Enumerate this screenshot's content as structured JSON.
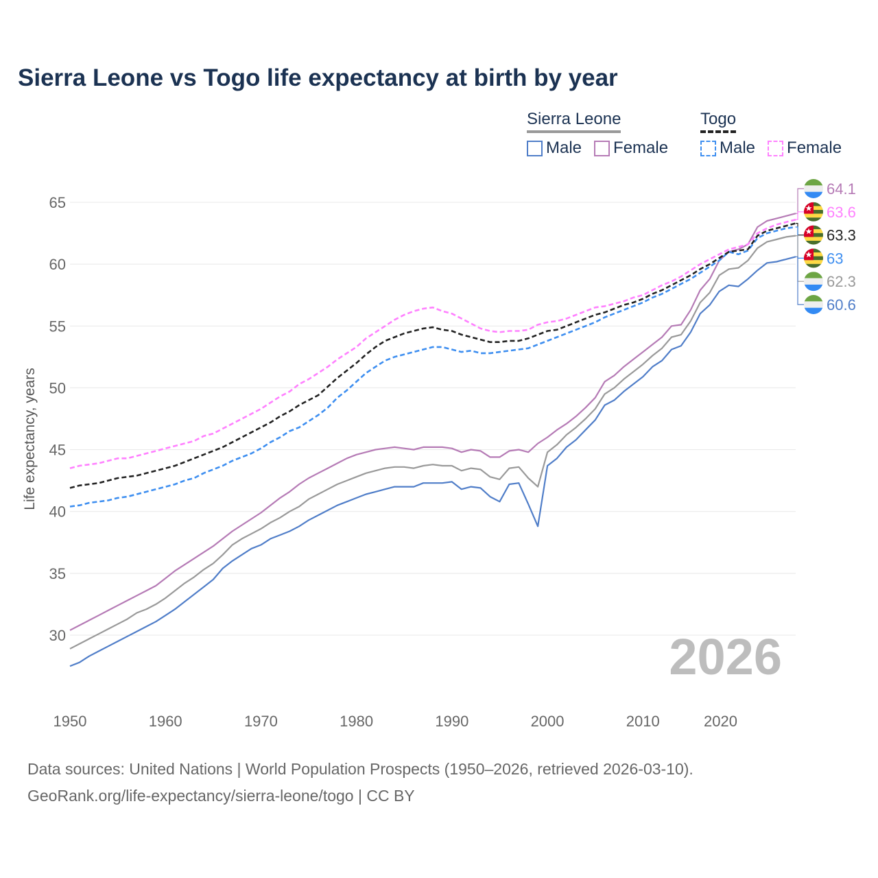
{
  "chart_data": {
    "type": "line",
    "title": "Sierra Leone vs Togo life expectancy at birth by year",
    "xlabel": "",
    "ylabel": "Life expectancy, years",
    "xlim": [
      1950,
      2026
    ],
    "ylim": [
      25,
      66.5
    ],
    "x_ticks": [
      1950,
      1960,
      1970,
      1980,
      1990,
      2000,
      2010,
      2020
    ],
    "y_ticks": [
      30,
      35,
      40,
      45,
      50,
      55,
      60,
      65
    ],
    "grid": true,
    "watermark_year": "2026",
    "x": [
      1950,
      1951,
      1952,
      1953,
      1954,
      1955,
      1956,
      1957,
      1958,
      1959,
      1960,
      1961,
      1962,
      1963,
      1964,
      1965,
      1966,
      1967,
      1968,
      1969,
      1970,
      1971,
      1972,
      1973,
      1974,
      1975,
      1976,
      1977,
      1978,
      1979,
      1980,
      1981,
      1982,
      1983,
      1984,
      1985,
      1986,
      1987,
      1988,
      1989,
      1990,
      1991,
      1992,
      1993,
      1994,
      1995,
      1996,
      1997,
      1998,
      1999,
      2000,
      2001,
      2002,
      2003,
      2004,
      2005,
      2006,
      2007,
      2008,
      2009,
      2010,
      2011,
      2012,
      2013,
      2014,
      2015,
      2016,
      2017,
      2018,
      2019,
      2020,
      2021,
      2022,
      2023,
      2024,
      2025,
      2026
    ],
    "series": [
      {
        "name": "Sierra Leone Female",
        "country": "sierra-leone",
        "color": "#b57ab5",
        "dashed": false,
        "end_label": "64.1",
        "values": [
          30.4,
          30.8,
          31.2,
          31.6,
          32.0,
          32.4,
          32.8,
          33.2,
          33.6,
          34.0,
          34.6,
          35.2,
          35.7,
          36.2,
          36.7,
          37.2,
          37.8,
          38.4,
          38.9,
          39.4,
          39.9,
          40.5,
          41.1,
          41.6,
          42.2,
          42.7,
          43.1,
          43.5,
          43.9,
          44.3,
          44.6,
          44.8,
          45.0,
          45.1,
          45.2,
          45.1,
          45.0,
          45.2,
          45.2,
          45.2,
          45.1,
          44.8,
          45.0,
          44.9,
          44.4,
          44.4,
          44.9,
          45.0,
          44.8,
          45.5,
          46.0,
          46.6,
          47.1,
          47.7,
          48.4,
          49.2,
          50.5,
          51.0,
          51.7,
          52.3,
          52.9,
          53.5,
          54.1,
          55.0,
          55.1,
          56.3,
          57.9,
          58.8,
          60.3,
          61.0,
          61.2,
          61.6,
          63.0,
          63.5,
          63.7,
          63.9,
          64.1
        ]
      },
      {
        "name": "Togo Female",
        "country": "togo",
        "color": "#ff80ff",
        "dashed": true,
        "end_label": "63.6",
        "values": [
          43.5,
          43.7,
          43.8,
          43.9,
          44.1,
          44.3,
          44.3,
          44.5,
          44.7,
          44.9,
          45.1,
          45.3,
          45.5,
          45.7,
          46.1,
          46.3,
          46.7,
          47.1,
          47.5,
          47.9,
          48.3,
          48.8,
          49.3,
          49.7,
          50.3,
          50.7,
          51.2,
          51.7,
          52.3,
          52.8,
          53.3,
          54.0,
          54.5,
          55.0,
          55.5,
          55.9,
          56.2,
          56.4,
          56.5,
          56.2,
          56.0,
          55.6,
          55.2,
          54.8,
          54.6,
          54.5,
          54.6,
          54.6,
          54.7,
          55.1,
          55.3,
          55.4,
          55.6,
          55.9,
          56.2,
          56.5,
          56.6,
          56.8,
          57.0,
          57.3,
          57.5,
          57.9,
          58.3,
          58.6,
          59.0,
          59.5,
          60.0,
          60.4,
          60.8,
          61.2,
          61.4,
          61.6,
          62.5,
          62.9,
          63.2,
          63.4,
          63.6
        ]
      },
      {
        "name": "Togo",
        "country": "togo",
        "color": "#222222",
        "dashed": true,
        "end_label": "63.3",
        "values": [
          41.9,
          42.1,
          42.2,
          42.3,
          42.5,
          42.7,
          42.8,
          42.9,
          43.1,
          43.3,
          43.5,
          43.7,
          44.0,
          44.3,
          44.6,
          44.9,
          45.2,
          45.6,
          46.0,
          46.4,
          46.8,
          47.2,
          47.7,
          48.1,
          48.6,
          49.0,
          49.4,
          50.1,
          50.8,
          51.4,
          52.0,
          52.7,
          53.3,
          53.8,
          54.1,
          54.4,
          54.6,
          54.8,
          54.9,
          54.7,
          54.6,
          54.3,
          54.1,
          53.9,
          53.7,
          53.7,
          53.8,
          53.8,
          54.0,
          54.3,
          54.6,
          54.7,
          55.0,
          55.3,
          55.6,
          55.9,
          56.1,
          56.4,
          56.7,
          56.9,
          57.2,
          57.6,
          57.9,
          58.3,
          58.7,
          59.1,
          59.6,
          60.0,
          60.5,
          61.0,
          61.1,
          61.2,
          62.3,
          62.7,
          62.9,
          63.1,
          63.3
        ]
      },
      {
        "name": "Togo Male",
        "country": "togo",
        "color": "#3d8ef0",
        "dashed": true,
        "end_label": "63",
        "values": [
          40.4,
          40.5,
          40.7,
          40.8,
          40.9,
          41.1,
          41.2,
          41.4,
          41.6,
          41.8,
          42.0,
          42.2,
          42.5,
          42.7,
          43.1,
          43.4,
          43.7,
          44.1,
          44.4,
          44.7,
          45.1,
          45.6,
          46.0,
          46.5,
          46.8,
          47.3,
          47.8,
          48.4,
          49.2,
          49.8,
          50.5,
          51.2,
          51.7,
          52.2,
          52.5,
          52.7,
          52.9,
          53.1,
          53.3,
          53.3,
          53.1,
          52.9,
          53.0,
          52.8,
          52.8,
          52.9,
          53.0,
          53.1,
          53.2,
          53.5,
          53.8,
          54.1,
          54.4,
          54.7,
          55.0,
          55.3,
          55.7,
          56.0,
          56.3,
          56.6,
          56.9,
          57.3,
          57.6,
          58.0,
          58.4,
          58.8,
          59.3,
          59.8,
          60.3,
          61.0,
          60.8,
          61.1,
          62.1,
          62.5,
          62.7,
          62.9,
          63.0
        ]
      },
      {
        "name": "Sierra Leone",
        "country": "sierra-leone",
        "color": "#999999",
        "dashed": false,
        "end_label": "62.3",
        "values": [
          28.9,
          29.3,
          29.7,
          30.1,
          30.5,
          30.9,
          31.3,
          31.8,
          32.1,
          32.5,
          33.0,
          33.6,
          34.2,
          34.7,
          35.3,
          35.8,
          36.5,
          37.3,
          37.8,
          38.2,
          38.6,
          39.1,
          39.5,
          40.0,
          40.4,
          41.0,
          41.4,
          41.8,
          42.2,
          42.5,
          42.8,
          43.1,
          43.3,
          43.5,
          43.6,
          43.6,
          43.5,
          43.7,
          43.8,
          43.7,
          43.7,
          43.3,
          43.5,
          43.4,
          42.8,
          42.6,
          43.5,
          43.6,
          42.7,
          42.0,
          44.8,
          45.4,
          46.2,
          46.8,
          47.5,
          48.3,
          49.5,
          50.0,
          50.7,
          51.3,
          51.9,
          52.6,
          53.2,
          54.1,
          54.3,
          55.4,
          56.9,
          57.7,
          59.1,
          59.6,
          59.7,
          60.3,
          61.3,
          61.8,
          62.0,
          62.2,
          62.3
        ]
      },
      {
        "name": "Sierra Leone Male",
        "country": "sierra-leone",
        "color": "#4f7dc8",
        "dashed": false,
        "end_label": "60.6",
        "values": [
          27.5,
          27.8,
          28.3,
          28.7,
          29.1,
          29.5,
          29.9,
          30.3,
          30.7,
          31.1,
          31.6,
          32.1,
          32.7,
          33.3,
          33.9,
          34.5,
          35.4,
          36.0,
          36.5,
          37.0,
          37.3,
          37.8,
          38.1,
          38.4,
          38.8,
          39.3,
          39.7,
          40.1,
          40.5,
          40.8,
          41.1,
          41.4,
          41.6,
          41.8,
          42.0,
          42.0,
          42.0,
          42.3,
          42.3,
          42.3,
          42.4,
          41.8,
          42.0,
          41.9,
          41.2,
          40.8,
          42.2,
          42.3,
          40.6,
          38.8,
          43.7,
          44.3,
          45.2,
          45.8,
          46.6,
          47.4,
          48.6,
          49.0,
          49.7,
          50.3,
          50.9,
          51.7,
          52.2,
          53.1,
          53.4,
          54.5,
          56.0,
          56.7,
          57.8,
          58.3,
          58.2,
          58.8,
          59.5,
          60.1,
          60.2,
          60.4,
          60.6
        ]
      }
    ],
    "legend": {
      "placement": "top-right",
      "groups": [
        {
          "label": "Sierra Leone",
          "underline_color": "#999999",
          "items": [
            {
              "label": "Male",
              "color": "#4f7dc8",
              "dashed": false
            },
            {
              "label": "Female",
              "color": "#b57ab5",
              "dashed": false
            }
          ]
        },
        {
          "label": "Togo",
          "underline_color": "#222222",
          "items": [
            {
              "label": "Male",
              "color": "#3d8ef0",
              "dashed": true
            },
            {
              "label": "Female",
              "color": "#ff80ff",
              "dashed": true
            }
          ]
        }
      ]
    }
  },
  "footer": {
    "line1": "Data sources: United Nations | World Population Prospects (1950–2026, retrieved 2026-03-10).",
    "line2": "GeoRank.org/life-expectancy/sierra-leone/togo | CC BY"
  }
}
